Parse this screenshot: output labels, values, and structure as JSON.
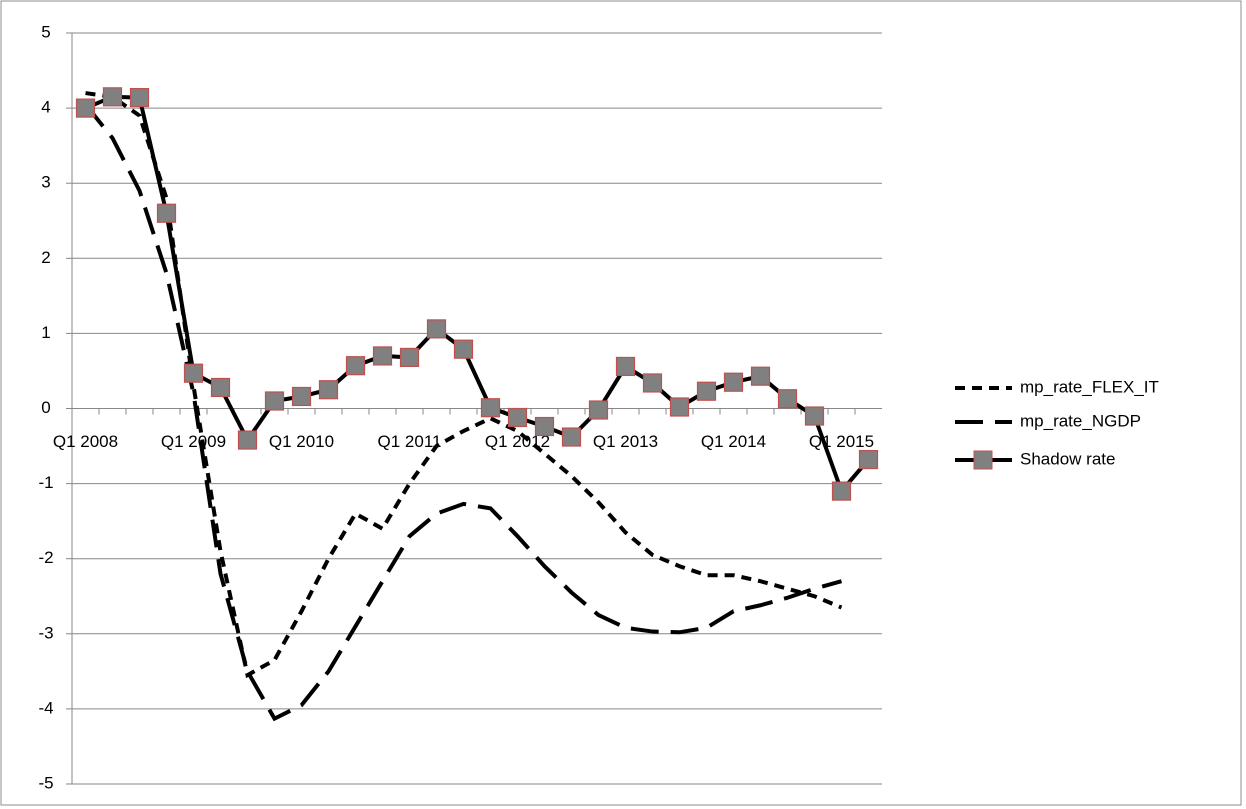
{
  "chart_data": {
    "type": "line",
    "categories": [
      "Q1 2008",
      null,
      null,
      null,
      "Q1 2009",
      null,
      null,
      null,
      "Q1 2010",
      null,
      null,
      null,
      "Q1 2011",
      null,
      null,
      null,
      "Q1 2012",
      null,
      null,
      null,
      "Q1 2013",
      null,
      null,
      null,
      "Q1 2014",
      null,
      null,
      null,
      "Q1 2015",
      null
    ],
    "series": [
      {
        "name": "mp_rate_FLEX_IT",
        "color": "#000000",
        "dash": "short",
        "values": [
          4.2,
          4.15,
          3.9,
          2.8,
          0.3,
          -1.9,
          -3.55,
          -3.35,
          -2.7,
          -2.0,
          -1.4,
          -1.6,
          -1.0,
          -0.5,
          -0.3,
          -0.13,
          -0.3,
          -0.6,
          -0.9,
          -1.25,
          -1.65,
          -1.95,
          -2.1,
          -2.22,
          -2.22,
          -2.3,
          -2.4,
          -2.5,
          -2.65,
          null
        ]
      },
      {
        "name": "mp_rate_NGDP",
        "color": "#000000",
        "dash": "long",
        "values": [
          4.05,
          3.6,
          2.9,
          1.8,
          0.2,
          -2.2,
          -3.5,
          -4.13,
          -3.95,
          -3.5,
          -2.9,
          -2.3,
          -1.7,
          -1.4,
          -1.27,
          -1.33,
          -1.7,
          -2.1,
          -2.45,
          -2.75,
          -2.92,
          -2.97,
          -2.98,
          -2.92,
          -2.7,
          -2.62,
          -2.52,
          -2.4,
          -2.3,
          null
        ]
      },
      {
        "name": "Shadow rate",
        "color": "#000000",
        "dash": "solid",
        "marker": "square",
        "marker_color": "#808080",
        "marker_edge": "#c0504d",
        "values": [
          4.0,
          4.15,
          4.14,
          2.6,
          0.47,
          0.28,
          -0.42,
          0.1,
          0.16,
          0.25,
          0.57,
          0.7,
          0.68,
          1.06,
          0.79,
          0.01,
          -0.12,
          -0.24,
          -0.38,
          -0.02,
          0.56,
          0.34,
          0.02,
          0.23,
          0.35,
          0.43,
          0.13,
          -0.1,
          -1.1,
          -0.68
        ]
      }
    ],
    "ylim": [
      -5,
      5
    ],
    "yticks": [
      -5,
      -4,
      -3,
      -2,
      -1,
      0,
      1,
      2,
      3,
      4,
      5
    ],
    "grid": true,
    "legend": "right"
  }
}
